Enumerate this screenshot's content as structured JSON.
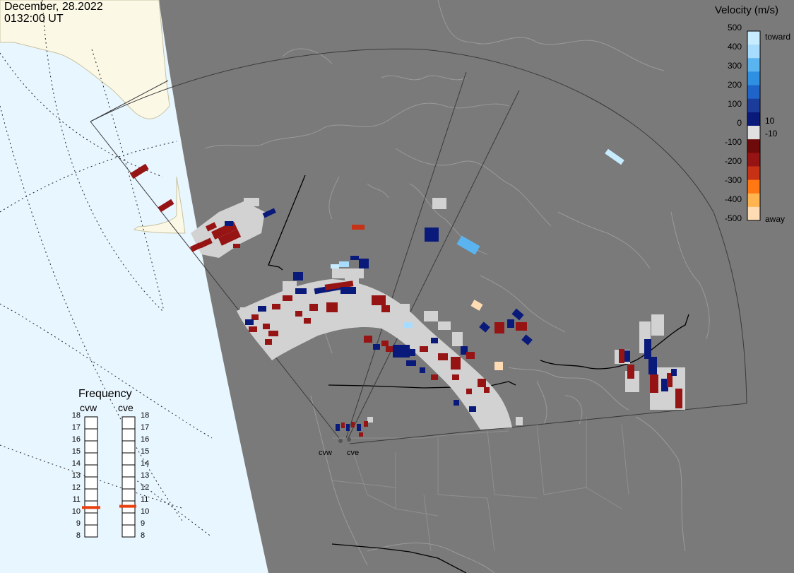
{
  "header": {
    "date": "December, 28.2022",
    "time": "0132:00 UT"
  },
  "velocity_scale": {
    "title": "Velocity (m/s)",
    "ticks": [
      "500",
      "400",
      "300",
      "200",
      "100",
      "10",
      "0",
      "-10",
      "-100",
      "-200",
      "-300",
      "-400",
      "-500"
    ],
    "toward_label": "toward",
    "away_label": "away",
    "colors": [
      "#c8ecff",
      "#a8dcff",
      "#5ab4f0",
      "#2f8fe0",
      "#1f64c8",
      "#1c3c9c",
      "#0a1a7a",
      "#e0e0e0",
      "#6e0a0a",
      "#961414",
      "#c83214",
      "#ff7814",
      "#ffb450",
      "#ffdcb4"
    ]
  },
  "frequency": {
    "title": "Frequency",
    "radars": [
      "cvw",
      "cve"
    ],
    "ticks": [
      "18",
      "17",
      "16",
      "15",
      "14",
      "13",
      "12",
      "11",
      "10",
      "9",
      "8"
    ],
    "cvw_value": 10.6,
    "cve_value": 10.7,
    "marker_color": "#e84010"
  },
  "radar_labels": [
    "cvw",
    "cve"
  ],
  "map_colors": {
    "background": "#7a7a7a",
    "ocean": "#e8f6ff",
    "land_unlit": "#fbf8e6",
    "coastline": "#999999",
    "ground_scatter": "#d2d2d2"
  }
}
